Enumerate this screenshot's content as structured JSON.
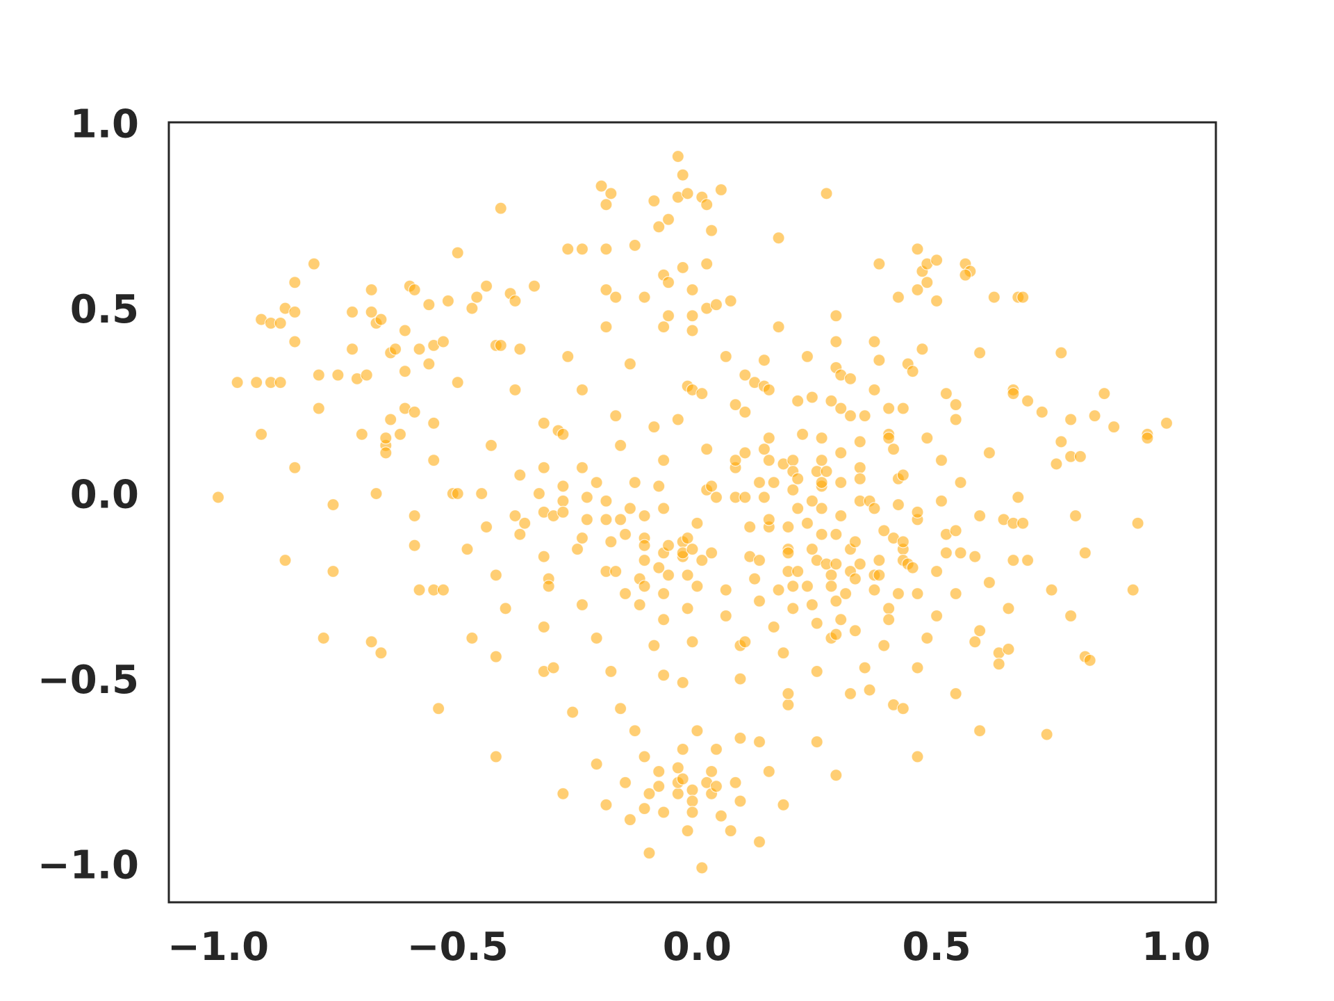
{
  "chart_data": {
    "type": "scatter",
    "color": "#ffa500",
    "grid": false,
    "xlim": [
      -1.103,
      1.083
    ],
    "ylim": [
      -1.093,
      1.012
    ],
    "xticks": [
      {
        "value": -1,
        "label": "−1.0"
      },
      {
        "value": -0.5,
        "label": "−0.5"
      },
      {
        "value": 0,
        "label": "0.0"
      },
      0.5,
      {
        "value": 1,
        "label": "1.0"
      }
    ],
    "yticks": [
      {
        "value": -1,
        "label": "−1.0"
      },
      {
        "value": -0.5,
        "label": "−0.5"
      },
      {
        "value": 0,
        "label": "0.0"
      },
      0.5,
      {
        "value": 1,
        "label": "1.0"
      }
    ],
    "x": [
      -1,
      -0.96,
      -0.92,
      -0.89,
      -0.87,
      -0.91,
      -0.89,
      -0.87,
      -0.86,
      -0.84,
      -0.84,
      -0.8,
      -0.84,
      -0.79,
      -0.79,
      -0.75,
      -0.91,
      -0.84,
      -0.76,
      -0.86,
      -0.76,
      -0.78,
      -0.68,
      -0.66,
      -0.72,
      -0.72,
      -0.71,
      -0.69,
      -0.68,
      -0.68,
      -0.67,
      -0.66,
      -0.7,
      -0.67,
      -0.65,
      -0.65,
      -0.65,
      -0.64,
      -0.62,
      -0.64,
      -0.63,
      -0.61,
      -0.61,
      -0.6,
      -0.59,
      -0.61,
      -0.59,
      -0.59,
      -0.59,
      -0.58,
      -0.55,
      -0.53,
      -0.58,
      -0.56,
      -0.56,
      -0.55,
      -0.53,
      -0.55,
      -0.55,
      -0.52,
      -0.51,
      -0.5,
      -0.5,
      -0.5,
      -0.48,
      -0.47,
      -0.47,
      -0.46,
      -0.45,
      -0.44,
      -0.44,
      -0.43,
      -0.42,
      -0.41,
      -0.42,
      -0.42,
      -0.42,
      -0.41,
      -0.54,
      -0.4,
      -0.39,
      -0.38,
      -0.38,
      -0.37,
      -0.38,
      -0.37,
      -0.37,
      -0.36,
      -0.34,
      -0.33,
      -0.32,
      -0.32,
      -0.32,
      -0.32,
      -0.3,
      -0.32,
      -0.31,
      -0.31,
      -0.32,
      -0.3,
      -0.29,
      -0.28,
      -0.28,
      -0.28,
      -0.27,
      -0.28,
      -0.27,
      -0.24,
      -0.26,
      -0.28,
      -0.25,
      -0.24,
      -0.24,
      -0.24,
      -0.23,
      -0.24,
      -0.23,
      -0.21,
      -0.21,
      -0.21,
      -0.2,
      -0.19,
      -0.19,
      -0.19,
      -0.19,
      -0.18,
      -0.19,
      -0.19,
      -0.19,
      -0.17,
      -0.19,
      -0.17,
      -0.17,
      -0.18,
      -0.18,
      -0.16,
      -0.16,
      -0.16,
      -0.15,
      -0.15,
      -0.15,
      -0.14,
      -0.14,
      -0.14,
      -0.13,
      -0.13,
      -0.13,
      -0.12,
      -0.12,
      -0.11,
      -0.11,
      -0.11,
      -0.11,
      -0.11,
      -0.11,
      -0.11,
      -0.11,
      -0.1,
      -0.09,
      -0.1,
      -0.09,
      -0.09,
      -0.08,
      -0.08,
      -0.08,
      -0.08,
      -0.08,
      -0.07,
      -0.07,
      -0.07,
      -0.07,
      -0.07,
      -0.07,
      -0.07,
      -0.07,
      -0.06,
      -0.07,
      -0.06,
      -0.06,
      -0.06,
      -0.06,
      -0.04,
      -0.04,
      -0.04,
      -0.04,
      -0.04,
      -0.04,
      -0.03,
      -0.03,
      -0.03,
      -0.03,
      -0.03,
      -0.03,
      -0.02,
      -0.03,
      -0.03,
      -0.02,
      -0.01,
      -0.02,
      -0.02,
      -0.02,
      -0.02,
      -0.01,
      -0.01,
      -0.01,
      -0.01,
      -0.01,
      0,
      -0.01,
      0,
      -0.01,
      -0.01,
      0,
      0.01,
      0.01,
      0.01,
      0.01,
      0.02,
      0.02,
      0.02,
      0.02,
      0.02,
      0.02,
      0.03,
      0.03,
      0.03,
      0.03,
      0.03,
      0.04,
      0.04,
      0.04,
      0.04,
      0.05,
      0.05,
      0.06,
      0.06,
      0.06,
      0.07,
      0.07,
      0.08,
      0.08,
      0.08,
      0.08,
      0.08,
      0.09,
      0.09,
      0.09,
      0.09,
      0.1,
      0.1,
      0.1,
      0.1,
      0.11,
      0.1,
      0.11,
      0.12,
      0.12,
      0.13,
      0.13,
      0.13,
      0.13,
      0.13,
      0.14,
      0.14,
      0.14,
      0.14,
      0.15,
      0.15,
      0.15,
      0.15,
      0.15,
      0.15,
      0.16,
      0.16,
      0.17,
      0.17,
      0.17,
      0.18,
      0.18,
      0.18,
      0.19,
      0.19,
      0.19,
      0.19,
      0.19,
      0.19,
      0.2,
      0.2,
      0.2,
      0.2,
      0.2,
      0.21,
      0.21,
      0.21,
      0.21,
      0.22,
      0.23,
      0.23,
      0.23,
      0.24,
      0.24,
      0.24,
      0.24,
      0.25,
      0.25,
      0.25,
      0.25,
      0.25,
      0.26,
      0.26,
      0.26,
      0.26,
      0.26,
      0.26,
      0.27,
      0.27,
      0.27,
      0.28,
      0.28,
      0.28,
      0.28,
      0.29,
      0.29,
      0.29,
      0.29,
      0.29,
      0.29,
      0.29,
      0.29,
      0.3,
      0.3,
      0.3,
      0.3,
      0.3,
      0.3,
      0.31,
      0.32,
      0.32,
      0.32,
      0.32,
      0.32,
      0.33,
      0.33,
      0.33,
      0.34,
      0.34,
      0.34,
      0.34,
      0.34,
      0.35,
      0.35,
      0.36,
      0.36,
      0.37,
      0.37,
      0.37,
      0.37,
      0.37,
      0.38,
      0.38,
      0.38,
      0.38,
      0.39,
      0.39,
      0.4,
      0.4,
      0.4,
      0.4,
      0.4,
      0.41,
      0.41,
      0.41,
      0.42,
      0.42,
      0.42,
      0.42,
      0.43,
      0.43,
      0.43,
      0.43,
      0.43,
      0.43,
      0.44,
      0.44,
      0.45,
      0.45,
      0.46,
      0.46,
      0.46,
      0.46,
      0.46,
      0.46,
      0.46,
      0.47,
      0.47,
      0.48,
      0.48,
      0.48,
      0.48,
      0.5,
      0.5,
      0.5,
      0.5,
      0.51,
      0.51,
      0.52,
      0.52,
      0.52,
      0.54,
      0.54,
      0.54,
      0.54,
      0.54,
      0.55,
      0.55,
      0.56,
      0.57,
      0.56,
      0.58,
      0.58,
      0.59,
      0.59,
      0.59,
      0.59,
      0.61,
      0.61,
      0.62,
      0.63,
      0.63,
      0.64,
      0.65,
      0.65,
      0.66,
      0.66,
      0.66,
      0.66,
      0.67,
      0.67,
      0.68,
      0.68,
      0.69,
      0.69,
      0.72,
      0.73,
      0.74,
      0.75,
      0.76,
      0.76,
      0.78,
      0.78,
      0.78,
      0.8,
      0.79,
      0.81,
      0.81,
      0.82,
      0.83,
      0.85,
      0.87,
      0.91,
      0.92,
      0.94,
      0.94,
      0.98
    ],
    "values": [
      0,
      0.31,
      0.31,
      0.31,
      0.31,
      0.48,
      0.47,
      0.47,
      0.51,
      0.5,
      0.58,
      0.63,
      0.42,
      0.33,
      0.24,
      0.33,
      0.17,
      0.08,
      -0.02,
      -0.17,
      -0.2,
      -0.38,
      -0.39,
      -0.42,
      0.4,
      0.5,
      0.32,
      0.33,
      0.5,
      0.56,
      0.47,
      0.48,
      0.17,
      0.01,
      0.14,
      0.12,
      0.16,
      0.21,
      0.17,
      0.39,
      0.4,
      0.34,
      0.45,
      0.57,
      0.56,
      0.24,
      0.23,
      -0.05,
      -0.13,
      -0.25,
      -0.25,
      -0.25,
      0.4,
      0.36,
      0.52,
      0.41,
      0.42,
      0.2,
      0.1,
      0.53,
      0.01,
      0.01,
      0.66,
      0.31,
      -0.14,
      -0.38,
      0.51,
      0.54,
      0.01,
      -0.08,
      0.57,
      0.14,
      0.41,
      0.41,
      -0.21,
      -0.43,
      -0.7,
      0.78,
      -0.57,
      -0.3,
      0.55,
      0.53,
      0.29,
      0.4,
      -0.05,
      -0.1,
      0.06,
      -0.07,
      0.57,
      0.01,
      -0.16,
      0.08,
      -0.35,
      -0.47,
      -0.46,
      -0.04,
      -0.22,
      -0.24,
      0.2,
      -0.05,
      0.18,
      0.17,
      -0.01,
      0.03,
      0.38,
      -0.04,
      0.67,
      0.67,
      -0.58,
      -0.8,
      -0.14,
      0.29,
      -0.29,
      -0.11,
      0,
      0.08,
      -0.06,
      -0.38,
      -0.72,
      0.04,
      0.84,
      -0.2,
      -0.01,
      -0.06,
      0.79,
      0.82,
      0.67,
      0.46,
      0.56,
      0.54,
      -0.83,
      0.22,
      -0.2,
      -0.47,
      -0.12,
      -0.57,
      -0.06,
      0.14,
      -0.26,
      -0.77,
      -0.1,
      -0.03,
      -0.87,
      0.36,
      0.04,
      -0.63,
      0.68,
      -0.22,
      -0.29,
      -0.17,
      -0.7,
      0.54,
      -0.05,
      -0.84,
      -0.24,
      -0.11,
      -0.13,
      -0.96,
      0.8,
      -0.8,
      0.19,
      -0.4,
      -0.78,
      -0.19,
      0.03,
      0.73,
      -0.74,
      -0.03,
      -0.33,
      -0.26,
      -0.15,
      0.46,
      0.1,
      -0.48,
      0.6,
      0.58,
      -0.85,
      0.49,
      -0.13,
      0.75,
      -0.21,
      -0.8,
      0.21,
      -0.77,
      0.92,
      0.81,
      -0.73,
      -0.16,
      -0.76,
      0.62,
      -0.5,
      -0.68,
      -0.12,
      -0.11,
      -0.15,
      0.87,
      0.3,
      0.29,
      0.82,
      -0.3,
      -0.21,
      -0.9,
      0.56,
      0.49,
      0.45,
      -0.39,
      -0.14,
      -0.07,
      -0.79,
      -0.24,
      -0.82,
      -0.85,
      -0.63,
      0.81,
      0.28,
      -0.17,
      -1,
      -0.77,
      0.02,
      0.51,
      0.13,
      0.79,
      0.63,
      0.03,
      -0.15,
      0.72,
      -0.74,
      -0.8,
      0,
      -0.68,
      0.52,
      -0.78,
      -0.86,
      0.83,
      0.38,
      -0.25,
      -0.32,
      -0.9,
      0.53,
      0,
      0.25,
      0.08,
      0.1,
      -0.77,
      -0.82,
      -0.65,
      -0.49,
      -0.4,
      -0.39,
      0.23,
      0,
      0.12,
      -0.08,
      0.33,
      -0.16,
      -0.22,
      0.31,
      -0.28,
      -0.17,
      -0.66,
      0.04,
      -0.93,
      0.3,
      0.13,
      0,
      0.37,
      -0.74,
      0.16,
      -0.08,
      -0.06,
      0.1,
      0.29,
      0.04,
      -0.35,
      0.46,
      0.7,
      -0.25,
      0.09,
      -0.42,
      -0.83,
      -0.14,
      -0.15,
      -0.56,
      -0.53,
      -0.2,
      -0.08,
      -0.3,
      0.02,
      0.1,
      0.07,
      -0.24,
      0.26,
      -0.03,
      -0.2,
      0.05,
      0.17,
      -0.07,
      0.38,
      -0.24,
      -0.01,
      -0.14,
      -0.29,
      0.27,
      -0.34,
      0.07,
      -0.47,
      -0.66,
      -0.17,
      0.03,
      0.1,
      0.16,
      0.04,
      -0.1,
      -0.03,
      0.82,
      -0.18,
      0.07,
      -0.21,
      -0.24,
      -0.38,
      0.26,
      0.35,
      -0.37,
      -0.18,
      0.49,
      0.42,
      -0.28,
      -0.1,
      -0.75,
      0.33,
      0.12,
      -0.33,
      0.24,
      -0.05,
      0.04,
      -0.26,
      -0.14,
      0.32,
      -0.53,
      -0.2,
      0.22,
      -0.36,
      -0.12,
      -0.22,
      -0.18,
      0.15,
      0.08,
      0.05,
      -0.01,
      0.22,
      -0.46,
      -0.52,
      -0.01,
      -0.25,
      -0.21,
      0.42,
      0.29,
      -0.03,
      0.37,
      0.63,
      -0.21,
      -0.17,
      -0.09,
      -0.4,
      0.17,
      0.16,
      -0.3,
      0.24,
      -0.33,
      -0.11,
      0.13,
      -0.56,
      -0.26,
      0.54,
      0.05,
      -0.02,
      -0.57,
      0.24,
      -0.14,
      -0.17,
      -0.12,
      0.06,
      0.36,
      -0.18,
      0.34,
      -0.19,
      0.67,
      -0.06,
      0.56,
      -0.7,
      -0.04,
      -0.46,
      -0.26,
      0.4,
      0.61,
      -0.38,
      0.16,
      0.63,
      0.58,
      0.53,
      -0.2,
      -0.32,
      0.64,
      0.1,
      -0.01,
      -0.1,
      0.28,
      -0.15,
      -0.53,
      0.25,
      0.21,
      -0.09,
      -0.26,
      -0.15,
      0.04,
      0.63,
      0.61,
      0.6,
      -0.16,
      -0.39,
      0.39,
      -0.05,
      -0.36,
      -0.63,
      0.12,
      -0.23,
      0.54,
      -0.42,
      -0.45,
      -0.06,
      -0.41,
      -0.3,
      0.29,
      -0.07,
      -0.17,
      0.28,
      0,
      0.54,
      -0.07,
      0.54,
      0.26,
      -0.17,
      0.23,
      -0.64,
      -0.25,
      0.09,
      0.39,
      0.15,
      -0.32,
      0.21,
      0.11,
      0.11,
      -0.05,
      -0.15,
      -0.43,
      -0.44,
      0.22,
      0.28,
      0.19,
      -0.25,
      -0.07,
      0.17,
      0.16,
      0.2
    ]
  }
}
